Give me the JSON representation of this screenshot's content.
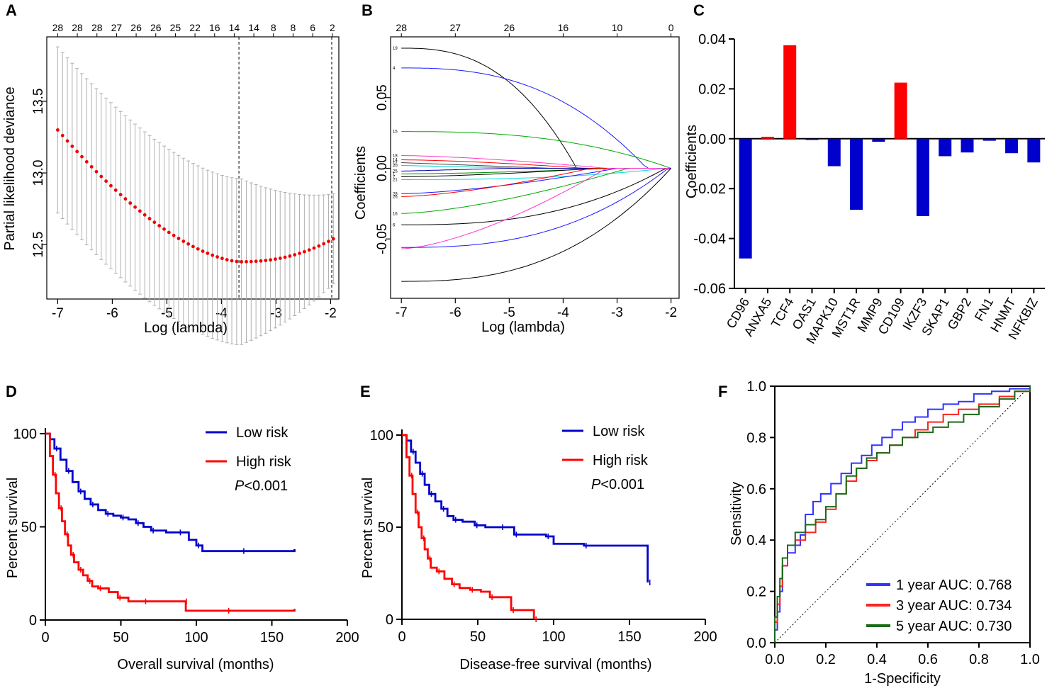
{
  "panels": {
    "A": {
      "label": "A",
      "type": "lasso-cv",
      "xlabel": "Log (lambda)",
      "ylabel": "Partial likelihood deviance",
      "xlim": [
        -7.2,
        -1.85
      ],
      "ylim": [
        12.12,
        13.95
      ],
      "xticks": [
        -7,
        -6,
        -5,
        -4,
        -3,
        -2
      ],
      "yticks": [
        12.5,
        13.0,
        13.5
      ],
      "ytick_labels": [
        "12.5",
        "13.0",
        "13.5"
      ],
      "top_counts": [
        "28",
        "28",
        "28",
        "27",
        "26",
        "26",
        "25",
        "22",
        "16",
        "14",
        "14",
        "8",
        "8",
        "6",
        "2"
      ],
      "vlines": [
        -3.68,
        -1.98
      ],
      "cv_points": {
        "start": -7.0,
        "end": -1.95,
        "n": 58,
        "formula": "quadratic-min",
        "min_x": -3.65,
        "min_y": 12.38,
        "start_y": 13.3,
        "end_y": 12.54,
        "halfwidth": 0.58,
        "halfwidth_end": 0.2
      }
    },
    "B": {
      "label": "B",
      "type": "lasso-path",
      "xlabel": "Log (lambda)",
      "ylabel": "Coefficients",
      "xlim": [
        -7.2,
        -1.85
      ],
      "ylim": [
        -0.092,
        0.093
      ],
      "xticks": [
        -7,
        -6,
        -5,
        -4,
        -3,
        -2
      ],
      "yticks": [
        -0.05,
        0.0,
        0.05
      ],
      "ytick_labels": [
        "-0.05",
        "0.00",
        "0.05"
      ],
      "top_counts": [
        "28",
        "27",
        "26",
        "16",
        "10",
        "0"
      ],
      "top_count_x": [
        -7.0,
        -6.0,
        -5.0,
        -4.0,
        -3.0,
        -2.0
      ],
      "path_labels": [
        "19",
        "4",
        "15",
        "18",
        "14",
        "12",
        "20",
        "25",
        "1",
        "7",
        "21",
        "28",
        "26",
        "16",
        "6"
      ],
      "paths": [
        {
          "name": "19",
          "color": "#000000",
          "start": 0.085,
          "end_x": -3.75,
          "shape": "late"
        },
        {
          "name": "4",
          "color": "#1a1aff",
          "start": 0.071,
          "end_x": -2.45,
          "shape": "late"
        },
        {
          "name": "15",
          "color": "#00aa00",
          "start": 0.026,
          "end_x": -2.0,
          "shape": "late"
        },
        {
          "name": "18",
          "color": "#ff33cc",
          "start": 0.009,
          "end_x": -3.2,
          "shape": "mid"
        },
        {
          "name": "14",
          "color": "#ff0000",
          "start": 0.006,
          "end_x": -3.6,
          "shape": "mid"
        },
        {
          "name": "12",
          "color": "#444444",
          "start": 0.004,
          "end_x": -4.2,
          "shape": "early"
        },
        {
          "name": "20",
          "color": "#00cccc",
          "start": 0.002,
          "end_x": -4.6,
          "shape": "early"
        },
        {
          "name": "25",
          "color": "#0000aa",
          "start": -0.002,
          "end_x": -5.0,
          "shape": "early"
        },
        {
          "name": "1a",
          "color": "#008800",
          "start": -0.004,
          "end_x": -3.1,
          "shape": "mid"
        },
        {
          "name": "7a",
          "color": "#000000",
          "start": -0.006,
          "end_x": -3.4,
          "shape": "mid"
        },
        {
          "name": "21a",
          "color": "#00dddd",
          "start": -0.008,
          "end_x": -2.1,
          "shape": "late"
        },
        {
          "name": "28",
          "color": "#1a1aff",
          "start": -0.018,
          "end_x": -3.0,
          "shape": "mid"
        },
        {
          "name": "26",
          "color": "#ff0000",
          "start": -0.02,
          "end_x": -3.5,
          "shape": "mid"
        },
        {
          "name": "21",
          "color": "#00aa00",
          "start": -0.032,
          "end_x": -2.8,
          "shape": "mid"
        },
        {
          "name": "7",
          "color": "#000000",
          "start": -0.04,
          "end_x": -2.1,
          "shape": "late"
        },
        {
          "name": "16",
          "color": "#ff33cc",
          "start": -0.057,
          "end_x": -3.2,
          "shape": "mid"
        },
        {
          "name": "6",
          "color": "#1a1aff",
          "start": -0.056,
          "end_x": -2.05,
          "shape": "late"
        },
        {
          "name": "1",
          "color": "#000000",
          "start": -0.08,
          "end_x": -2.0,
          "shape": "late"
        }
      ]
    },
    "C": {
      "label": "C",
      "type": "bar",
      "ylabel": "Coefficients",
      "ylim": [
        -0.06,
        0.04
      ],
      "yticks": [
        -0.06,
        -0.04,
        -0.02,
        0.0,
        0.02,
        0.04
      ],
      "ytick_labels": [
        "-0.06",
        "-0.04",
        "-0.02",
        "0.00",
        "0.02",
        "0.04"
      ],
      "categories": [
        "CD96",
        "ANXA5",
        "TCF4",
        "OAS1",
        "MAPK10",
        "MST1R",
        "MMP9",
        "CD109",
        "IKZF3",
        "SKAP1",
        "GBP2",
        "FN1",
        "HNMT",
        "NFKBIZ"
      ],
      "values": [
        -0.048,
        0.0008,
        0.0375,
        -0.0005,
        -0.011,
        -0.0285,
        -0.0012,
        0.0225,
        -0.031,
        -0.007,
        -0.0055,
        -0.0008,
        -0.0058,
        -0.0095
      ],
      "pos_color": "#ff0000",
      "neg_color": "#0000cc"
    },
    "D": {
      "label": "D",
      "type": "km",
      "xlabel": "Overall survival (months)",
      "ylabel": "Percent survival",
      "xlim": [
        0,
        200
      ],
      "ylim": [
        0,
        100
      ],
      "xticks": [
        0,
        50,
        100,
        150,
        200
      ],
      "yticks": [
        0,
        50,
        100
      ],
      "legend": [
        "Low risk",
        "High risk"
      ],
      "p_prefix": "P",
      "p_value": "<0.001",
      "series": [
        {
          "name": "Low risk",
          "color": "#0000cc",
          "points": [
            [
              0,
              100
            ],
            [
              3,
              97
            ],
            [
              6,
              92
            ],
            [
              10,
              86
            ],
            [
              14,
              80
            ],
            [
              18,
              74
            ],
            [
              22,
              69
            ],
            [
              26,
              65
            ],
            [
              30,
              62
            ],
            [
              35,
              59
            ],
            [
              40,
              57
            ],
            [
              45,
              56
            ],
            [
              50,
              55
            ],
            [
              55,
              54
            ],
            [
              60,
              52
            ],
            [
              65,
              50
            ],
            [
              70,
              48
            ],
            [
              80,
              47
            ],
            [
              88,
              47
            ],
            [
              95,
              43
            ],
            [
              100,
              40
            ],
            [
              104,
              37
            ],
            [
              130,
              37
            ],
            [
              165,
              38
            ]
          ]
        },
        {
          "name": "High risk",
          "color": "#ff0000",
          "points": [
            [
              0,
              100
            ],
            [
              3,
              88
            ],
            [
              5,
              78
            ],
            [
              7,
              68
            ],
            [
              9,
              60
            ],
            [
              11,
              53
            ],
            [
              13,
              46
            ],
            [
              15,
              40
            ],
            [
              17,
              35
            ],
            [
              19,
              31
            ],
            [
              22,
              27
            ],
            [
              25,
              24
            ],
            [
              28,
              21
            ],
            [
              31,
              18
            ],
            [
              35,
              17
            ],
            [
              42,
              15
            ],
            [
              48,
              12
            ],
            [
              55,
              10
            ],
            [
              65,
              10
            ],
            [
              80,
              10
            ],
            [
              92,
              10
            ],
            [
              93,
              5
            ],
            [
              120,
              5
            ],
            [
              165,
              6
            ]
          ]
        }
      ]
    },
    "E": {
      "label": "E",
      "type": "km",
      "xlabel": "Disease-free survival (months)",
      "ylabel": "Percent survival",
      "xlim": [
        0,
        200
      ],
      "ylim": [
        0,
        100
      ],
      "xticks": [
        0,
        50,
        100,
        150,
        200
      ],
      "yticks": [
        0,
        50,
        100
      ],
      "legend": [
        "Low risk",
        "High risk"
      ],
      "p_prefix": "P",
      "p_value": "<0.001",
      "series": [
        {
          "name": "Low risk",
          "color": "#0000cc",
          "points": [
            [
              0,
              100
            ],
            [
              3,
              97
            ],
            [
              6,
              91
            ],
            [
              9,
              85
            ],
            [
              12,
              79
            ],
            [
              15,
              73
            ],
            [
              18,
              68
            ],
            [
              22,
              64
            ],
            [
              26,
              60
            ],
            [
              30,
              56
            ],
            [
              34,
              54
            ],
            [
              40,
              53
            ],
            [
              48,
              51
            ],
            [
              55,
              50
            ],
            [
              65,
              50
            ],
            [
              72,
              50
            ],
            [
              74,
              46
            ],
            [
              85,
              46
            ],
            [
              95,
              45
            ],
            [
              100,
              41
            ],
            [
              120,
              40
            ],
            [
              160,
              40
            ],
            [
              162,
              20
            ]
          ]
        },
        {
          "name": "High risk",
          "color": "#ff0000",
          "points": [
            [
              0,
              100
            ],
            [
              3,
              88
            ],
            [
              5,
              78
            ],
            [
              7,
              68
            ],
            [
              9,
              58
            ],
            [
              11,
              50
            ],
            [
              13,
              44
            ],
            [
              15,
              38
            ],
            [
              17,
              33
            ],
            [
              19,
              28
            ],
            [
              23,
              26
            ],
            [
              28,
              22
            ],
            [
              33,
              19
            ],
            [
              38,
              17
            ],
            [
              45,
              16
            ],
            [
              52,
              15
            ],
            [
              58,
              12
            ],
            [
              65,
              12
            ],
            [
              72,
              5
            ],
            [
              85,
              5
            ],
            [
              87,
              0
            ]
          ]
        }
      ]
    },
    "F": {
      "label": "F",
      "type": "roc",
      "xlabel": "1-Specificity",
      "ylabel": "Sensitivity",
      "xlim": [
        0,
        1
      ],
      "ylim": [
        0,
        1
      ],
      "xticks": [
        0.0,
        0.2,
        0.4,
        0.6,
        0.8,
        1.0
      ],
      "yticks": [
        0.0,
        0.2,
        0.4,
        0.6,
        0.8,
        1.0
      ],
      "tick_labels": [
        "0.0",
        "0.2",
        "0.4",
        "0.6",
        "0.8",
        "1.0"
      ],
      "series": [
        {
          "name": "1 year AUC: 0.768",
          "color": "#3333ff",
          "points": [
            [
              0,
              0
            ],
            [
              0.0,
              0.05
            ],
            [
              0.01,
              0.12
            ],
            [
              0.02,
              0.2
            ],
            [
              0.03,
              0.3
            ],
            [
              0.05,
              0.35
            ],
            [
              0.08,
              0.38
            ],
            [
              0.1,
              0.42
            ],
            [
              0.12,
              0.5
            ],
            [
              0.15,
              0.55
            ],
            [
              0.18,
              0.58
            ],
            [
              0.22,
              0.62
            ],
            [
              0.26,
              0.66
            ],
            [
              0.3,
              0.7
            ],
            [
              0.34,
              0.73
            ],
            [
              0.38,
              0.77
            ],
            [
              0.42,
              0.8
            ],
            [
              0.46,
              0.83
            ],
            [
              0.5,
              0.86
            ],
            [
              0.55,
              0.88
            ],
            [
              0.6,
              0.91
            ],
            [
              0.66,
              0.93
            ],
            [
              0.72,
              0.94
            ],
            [
              0.78,
              0.97
            ],
            [
              0.85,
              0.98
            ],
            [
              0.92,
              0.99
            ],
            [
              1.0,
              1.0
            ]
          ]
        },
        {
          "name": "3 year AUC: 0.734",
          "color": "#ff2222",
          "points": [
            [
              0,
              0
            ],
            [
              0.0,
              0.08
            ],
            [
              0.01,
              0.15
            ],
            [
              0.02,
              0.22
            ],
            [
              0.03,
              0.3
            ],
            [
              0.05,
              0.38
            ],
            [
              0.08,
              0.4
            ],
            [
              0.12,
              0.43
            ],
            [
              0.16,
              0.47
            ],
            [
              0.2,
              0.52
            ],
            [
              0.24,
              0.58
            ],
            [
              0.28,
              0.63
            ],
            [
              0.32,
              0.68
            ],
            [
              0.36,
              0.71
            ],
            [
              0.4,
              0.74
            ],
            [
              0.45,
              0.77
            ],
            [
              0.5,
              0.8
            ],
            [
              0.55,
              0.83
            ],
            [
              0.6,
              0.86
            ],
            [
              0.66,
              0.89
            ],
            [
              0.72,
              0.91
            ],
            [
              0.8,
              0.93
            ],
            [
              0.88,
              0.96
            ],
            [
              0.94,
              0.98
            ],
            [
              1.0,
              1.0
            ]
          ]
        },
        {
          "name": "5 year AUC: 0.730",
          "color": "#1a6b1a",
          "points": [
            [
              0,
              0
            ],
            [
              0.0,
              0.1
            ],
            [
              0.01,
              0.18
            ],
            [
              0.02,
              0.25
            ],
            [
              0.03,
              0.33
            ],
            [
              0.05,
              0.38
            ],
            [
              0.08,
              0.43
            ],
            [
              0.12,
              0.46
            ],
            [
              0.16,
              0.48
            ],
            [
              0.2,
              0.53
            ],
            [
              0.24,
              0.58
            ],
            [
              0.28,
              0.65
            ],
            [
              0.32,
              0.68
            ],
            [
              0.36,
              0.72
            ],
            [
              0.4,
              0.74
            ],
            [
              0.45,
              0.77
            ],
            [
              0.5,
              0.8
            ],
            [
              0.56,
              0.82
            ],
            [
              0.62,
              0.84
            ],
            [
              0.68,
              0.86
            ],
            [
              0.74,
              0.89
            ],
            [
              0.8,
              0.92
            ],
            [
              0.88,
              0.95
            ],
            [
              0.94,
              0.98
            ],
            [
              1.0,
              1.0
            ]
          ]
        }
      ]
    }
  }
}
